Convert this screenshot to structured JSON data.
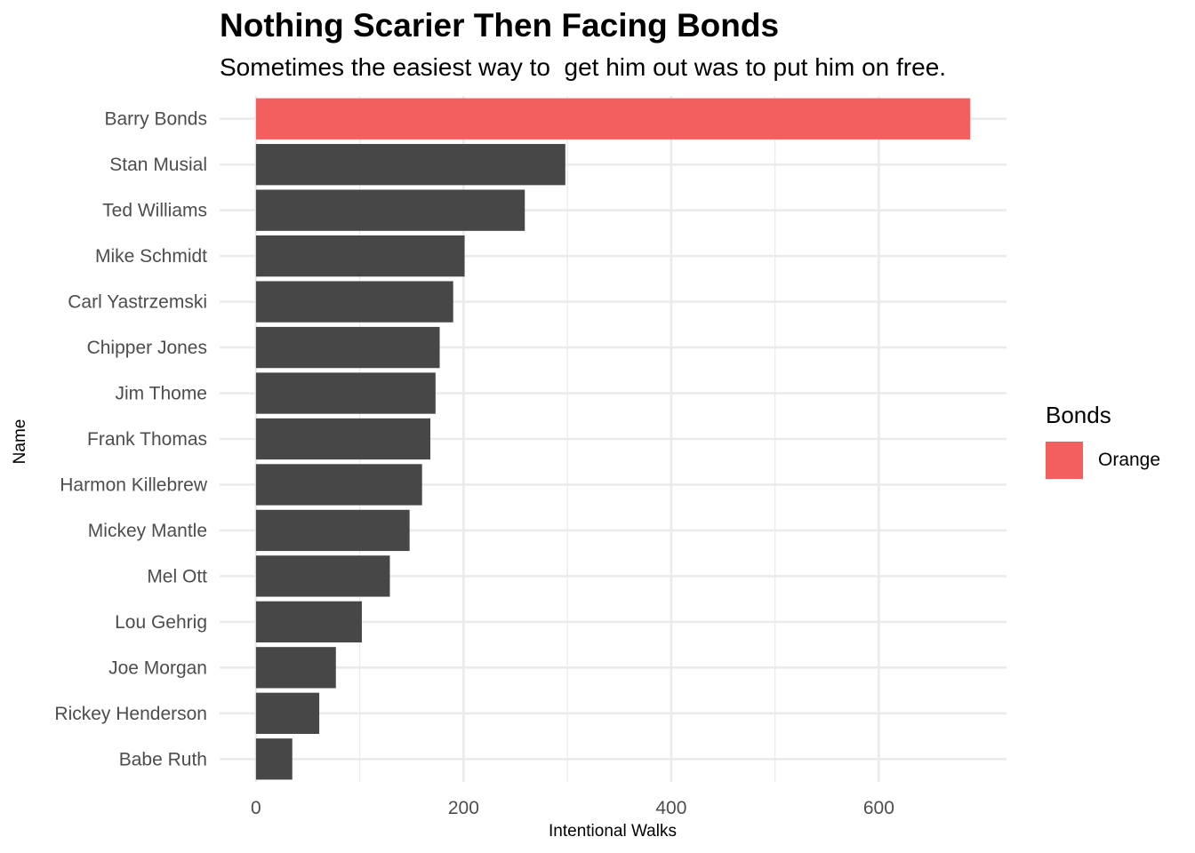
{
  "chart_data": {
    "type": "bar",
    "orientation": "horizontal",
    "title": "Nothing Scarier Then Facing Bonds",
    "subtitle": "Sometimes the easiest way to  get him out was to put him on free.",
    "xlabel": "Intentional Walks",
    "ylabel": "Name",
    "categories": [
      "Barry Bonds",
      "Stan Musial",
      "Ted Williams",
      "Mike Schmidt",
      "Carl Yastrzemski",
      "Chipper Jones",
      "Jim Thome",
      "Frank Thomas",
      "Harmon Killebrew",
      "Mickey Mantle",
      "Mel Ott",
      "Lou Gehrig",
      "Joe Morgan",
      "Rickey Henderson",
      "Babe Ruth"
    ],
    "values": [
      688,
      298,
      259,
      201,
      190,
      177,
      173,
      168,
      160,
      148,
      129,
      102,
      77,
      61,
      35
    ],
    "highlight": [
      true,
      false,
      false,
      false,
      false,
      false,
      false,
      false,
      false,
      false,
      false,
      false,
      false,
      false,
      false
    ],
    "xlim": [
      -35,
      723
    ],
    "xticks": [
      0,
      200,
      400,
      600
    ],
    "grid": true,
    "colors": {
      "highlight": "#f35f5f",
      "default": "#474747",
      "grid": "#ebebeb",
      "tick_text": "#4d4d4d"
    },
    "legend": {
      "title": "Bonds",
      "placement": "right",
      "entries": [
        {
          "label": "Orange",
          "color": "#f35f5f"
        }
      ]
    }
  }
}
